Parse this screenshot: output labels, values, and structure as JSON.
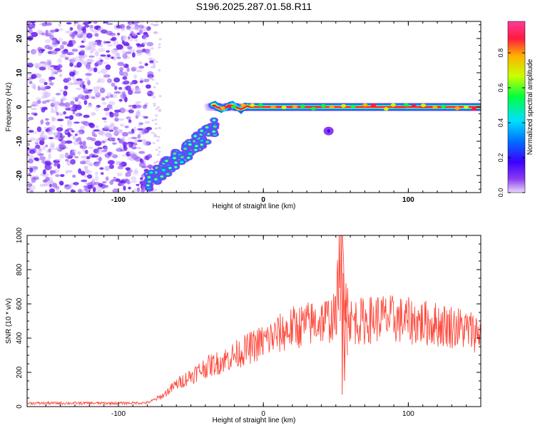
{
  "title": "S196.2025.287.01.58.R11",
  "colors": {
    "signal": "#ff4a3d",
    "axis": "#000000",
    "noise": "#8a3cf0"
  },
  "chart_data": [
    {
      "type": "heatmap",
      "xlabel": "Height of straight line (km)",
      "ylabel": "Frequency (Hz)",
      "xlim": [
        -163,
        150
      ],
      "ylim": [
        -25,
        25
      ],
      "xticks": [
        -100,
        0,
        100
      ],
      "yticks": [
        -20,
        -10,
        0,
        10,
        20
      ],
      "colorbar": {
        "label": "Normalized spectral amplitude",
        "range": [
          0,
          0.98
        ],
        "ticks": [
          "0.0",
          "0.2",
          "0.4",
          "0.6",
          "0.8"
        ],
        "colors": [
          "#e8d8ff",
          "#8a3cf0",
          "#3a00ff",
          "#0070ff",
          "#00e0ff",
          "#00ff40",
          "#c8ff00",
          "#ffb000",
          "#ff1a40",
          "#ff3c9a"
        ]
      },
      "features": [
        {
          "name": "noise region",
          "x_range": [
            -163,
            -77
          ],
          "y_range": [
            -25,
            25
          ]
        },
        {
          "name": "rising segment",
          "x_range": [
            -80,
            -33
          ],
          "y_range": [
            -22,
            -6
          ]
        },
        {
          "name": "carrier",
          "x_range": [
            -35,
            150
          ],
          "y": 0
        },
        {
          "name": "spur",
          "x": 45,
          "y": -7
        }
      ]
    },
    {
      "type": "line",
      "xlabel": "Height of straight line (km)",
      "ylabel": "SNR (10 * v/v)",
      "xlim": [
        -163,
        150
      ],
      "ylim": [
        0,
        1000
      ],
      "xticks": [
        -100,
        0,
        100
      ],
      "yticks": [
        0,
        200,
        400,
        600,
        800,
        1000
      ],
      "series": [
        {
          "x": [
            -163,
            -100,
            -80,
            -70,
            -60,
            -50,
            -40,
            -30,
            -20,
            -10,
            0,
            10,
            20,
            30,
            40,
            50,
            52,
            54,
            56,
            60,
            70,
            80,
            90,
            100,
            110,
            120,
            130,
            140,
            150
          ],
          "values": [
            20,
            20,
            22,
            60,
            130,
            180,
            230,
            260,
            300,
            340,
            380,
            420,
            460,
            480,
            500,
            520,
            780,
            1000,
            700,
            500,
            500,
            520,
            510,
            500,
            490,
            480,
            470,
            450,
            430
          ]
        }
      ]
    }
  ]
}
